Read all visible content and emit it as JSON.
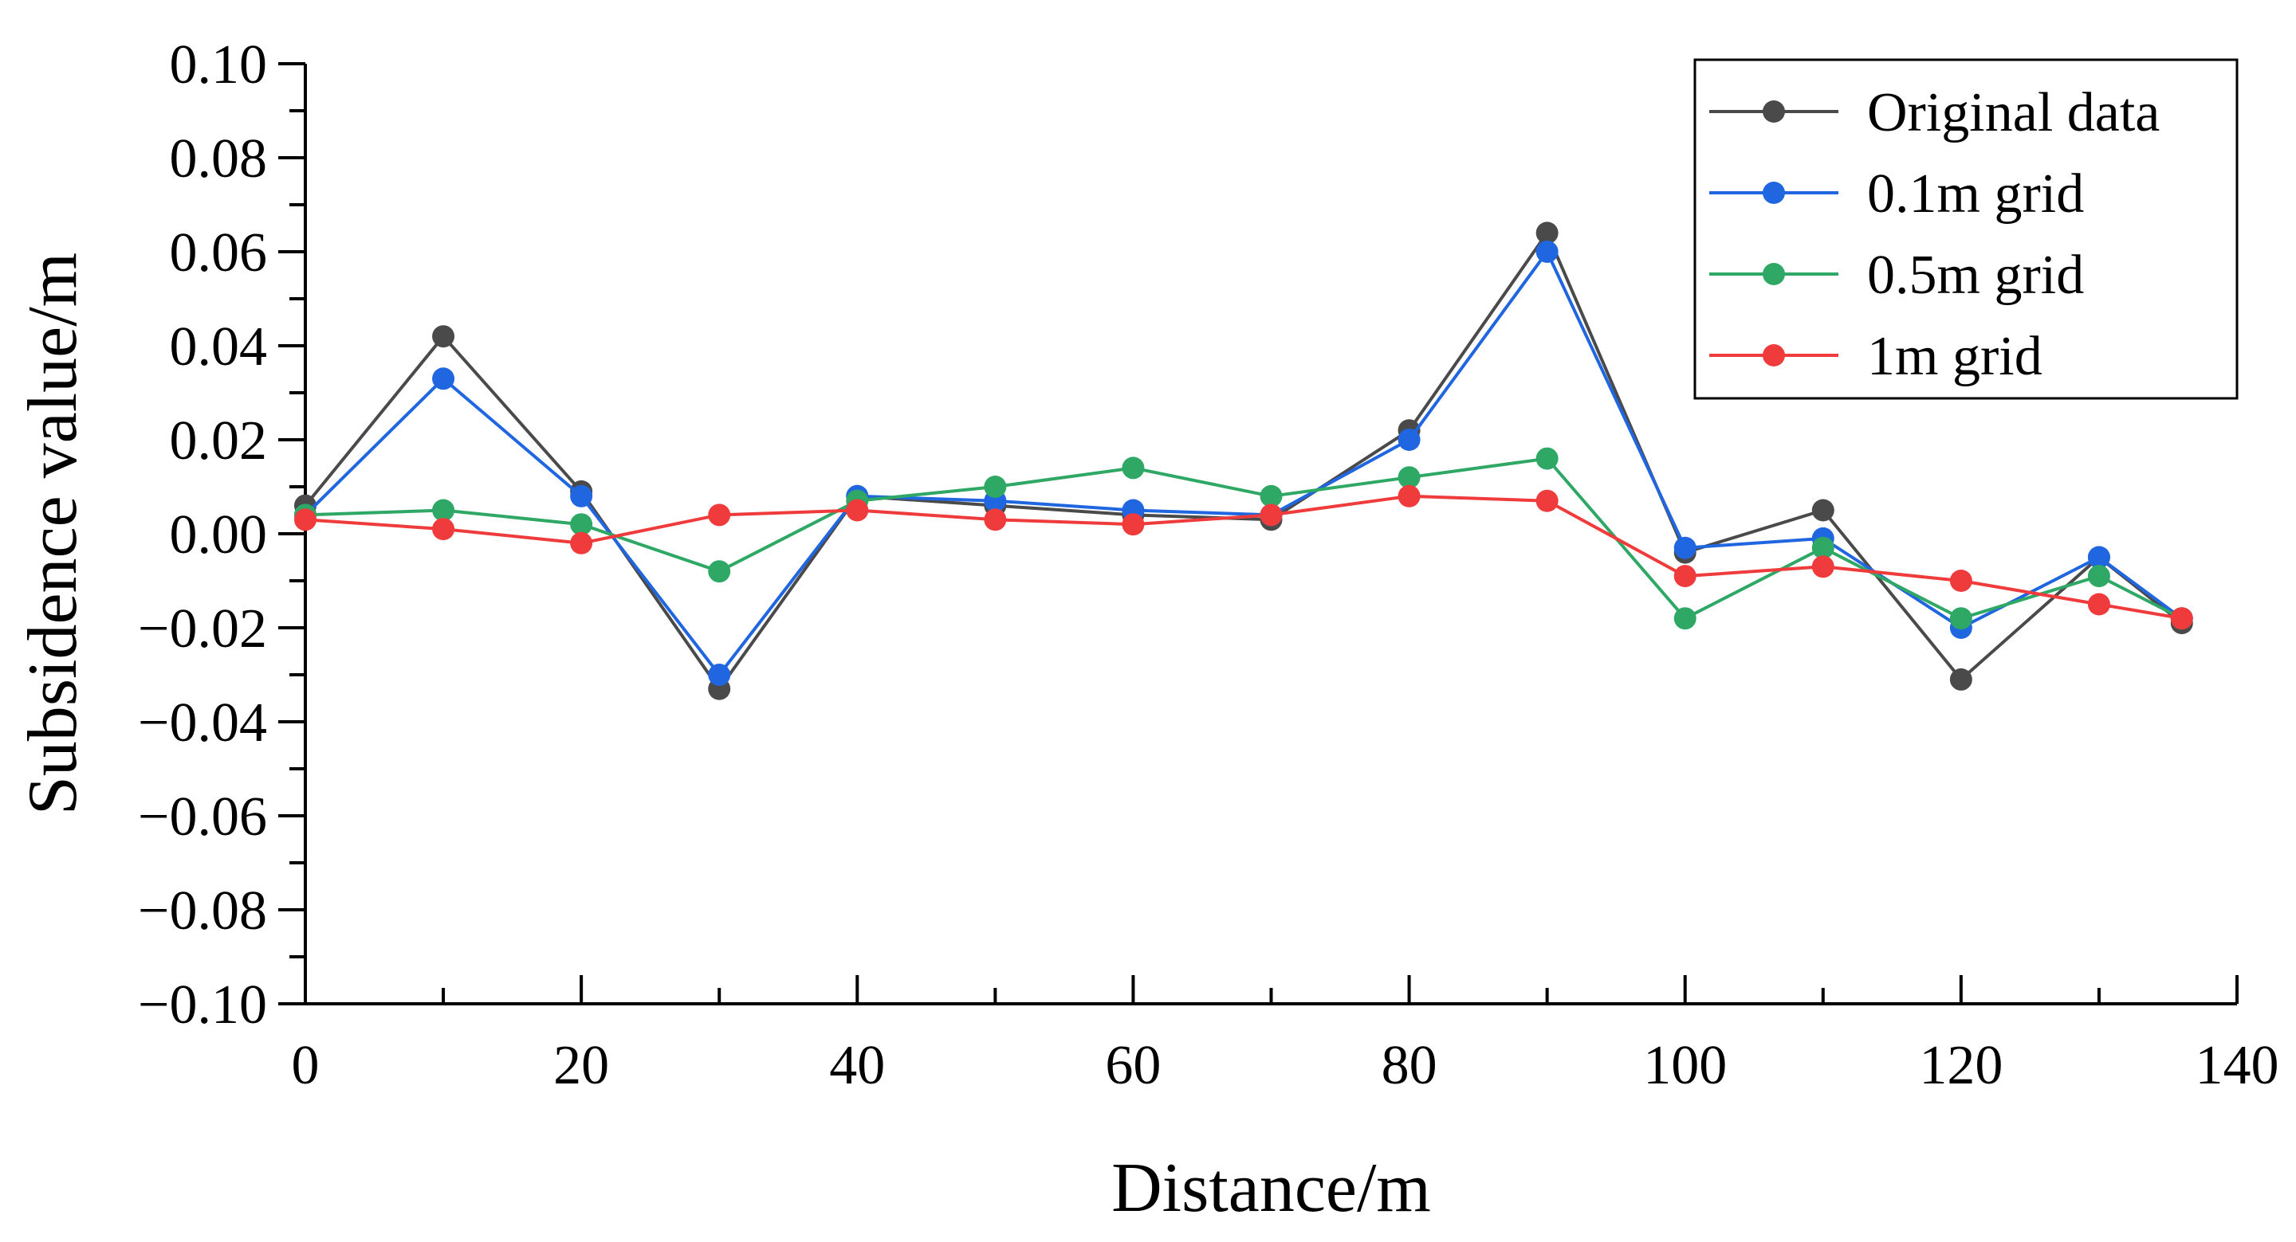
{
  "chart_data": {
    "type": "line",
    "title": "",
    "xlabel": "Distance/m",
    "ylabel": "Subsidence value/m",
    "xlim": [
      0,
      140
    ],
    "ylim": [
      -0.1,
      0.1
    ],
    "xticks": [
      0,
      20,
      40,
      60,
      80,
      100,
      120,
      140
    ],
    "xtick_labels": [
      "0",
      "20",
      "40",
      "60",
      "80",
      "100",
      "120",
      "140"
    ],
    "yticks": [
      -0.1,
      -0.08,
      -0.06,
      -0.04,
      -0.02,
      0.0,
      0.02,
      0.04,
      0.06,
      0.08,
      0.1
    ],
    "ytick_labels": [
      "−0.10",
      "−0.08",
      "−0.06",
      "−0.04",
      "−0.02",
      "0.00",
      "0.02",
      "0.04",
      "0.06",
      "0.08",
      "0.10"
    ],
    "grid": false,
    "legend_position": "top-right",
    "x": [
      0,
      10,
      20,
      30,
      40,
      50,
      60,
      70,
      80,
      90,
      100,
      110,
      120,
      130,
      136
    ],
    "series": [
      {
        "name": "Original data",
        "color": "#4a4a4a",
        "values": [
          0.006,
          0.042,
          0.009,
          -0.033,
          0.008,
          0.006,
          0.004,
          0.003,
          0.022,
          0.064,
          -0.004,
          0.005,
          -0.031,
          -0.005,
          -0.019
        ]
      },
      {
        "name": "0.1m grid",
        "color": "#1f66e0",
        "values": [
          0.004,
          0.033,
          0.008,
          -0.03,
          0.008,
          0.007,
          0.005,
          0.004,
          0.02,
          0.06,
          -0.003,
          -0.001,
          -0.02,
          -0.005,
          -0.018
        ]
      },
      {
        "name": "0.5m grid",
        "color": "#2fa866",
        "values": [
          0.004,
          0.005,
          0.002,
          -0.008,
          0.007,
          0.01,
          0.014,
          0.008,
          0.012,
          0.016,
          -0.018,
          -0.003,
          -0.018,
          -0.009,
          -0.018
        ]
      },
      {
        "name": "1m grid",
        "color": "#ef3b3b",
        "values": [
          0.003,
          0.001,
          -0.002,
          0.004,
          0.005,
          0.003,
          0.002,
          0.004,
          0.008,
          0.007,
          -0.009,
          -0.007,
          -0.01,
          -0.015,
          -0.018
        ]
      }
    ]
  }
}
